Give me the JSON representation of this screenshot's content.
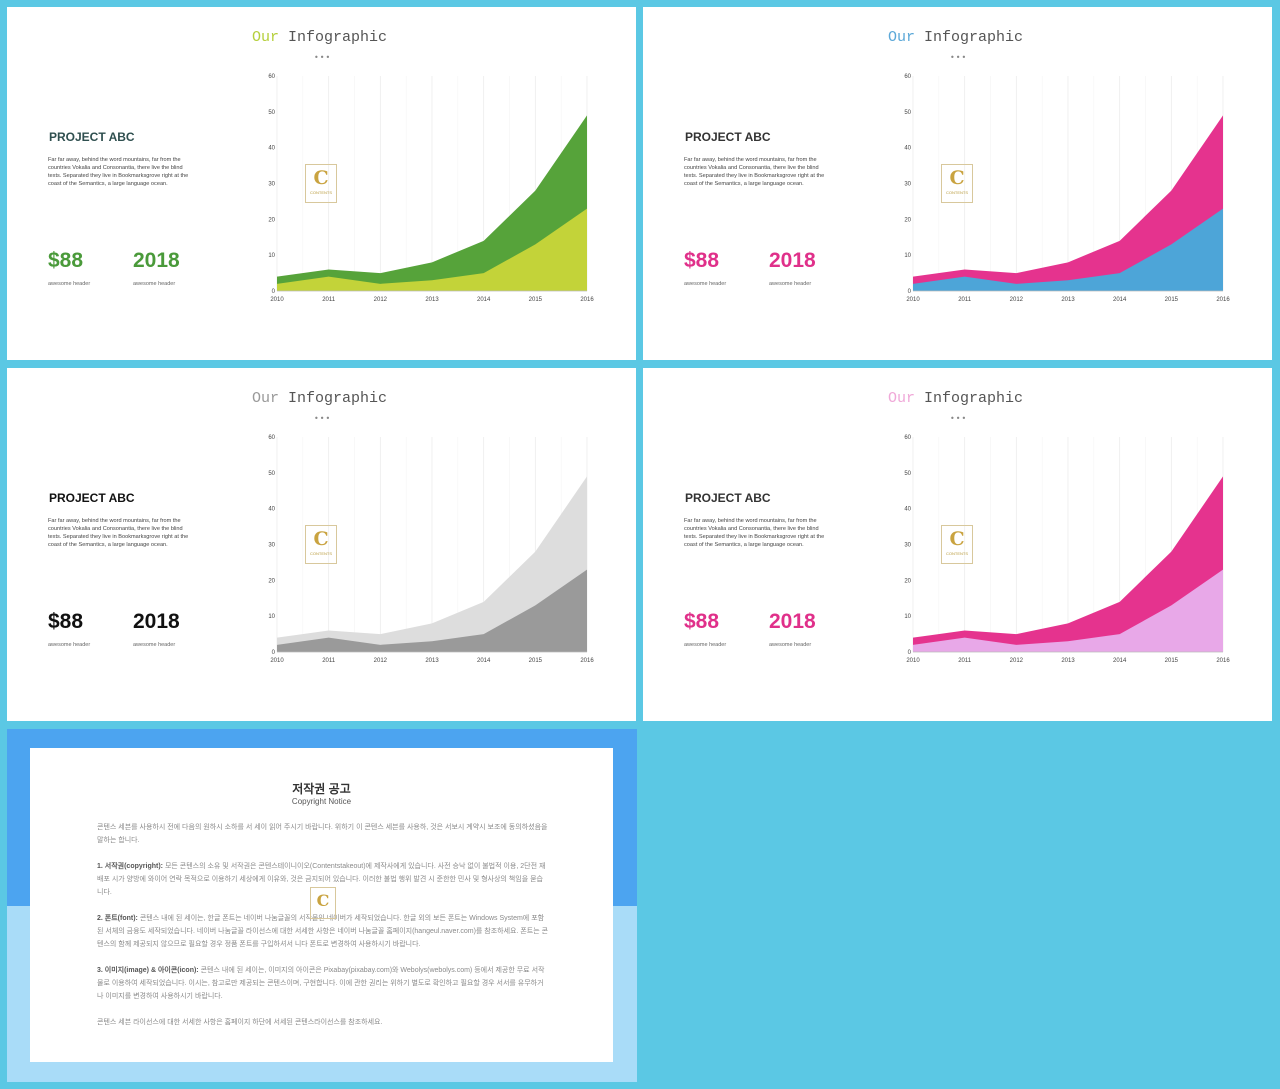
{
  "slides": [
    {
      "title_word1": "Our",
      "title_word2": "Infographic",
      "dots": "•••",
      "project_title": "PROJECT ABC",
      "description": "Far far away, behind the word mountains, far from the countries Vokalia and Consonantia, there live the blind texts. Separated they live in Bookmarksgrove right at the coast of the Semantics, a large language ocean.",
      "stat1_value": "$88",
      "stat1_label": "awesome header",
      "stat2_value": "2018",
      "stat2_label": "awesome header",
      "logo_letter": "C",
      "logo_text": "CONTENTS",
      "colors": {
        "title1": "#b5cf3b",
        "project": "#2f4f4f",
        "stats": "#4a9a3a",
        "upper": "#56a33a",
        "lower": "#c3d339"
      }
    },
    {
      "title_word1": "Our",
      "title_word2": "Infographic",
      "dots": "•••",
      "project_title": "PROJECT ABC",
      "description": "Far far away, behind the word mountains, far from the countries Vokalia and Consonantia, there live the blind texts. Separated they live in Bookmarksgrove right at the coast of the Semantics, a large language ocean.",
      "stat1_value": "$88",
      "stat1_label": "awesome header",
      "stat2_value": "2018",
      "stat2_label": "awesome header",
      "logo_letter": "C",
      "logo_text": "CONTENTS",
      "colors": {
        "title1": "#5ba8d8",
        "project": "#333333",
        "stats": "#e0308a",
        "upper": "#e5338e",
        "lower": "#4da5d8"
      }
    },
    {
      "title_word1": "Our",
      "title_word2": "Infographic",
      "dots": "•••",
      "project_title": "PROJECT ABC",
      "description": "Far far away, behind the word mountains, far from the countries Vokalia and Consonantia, there live the blind texts. Separated they live in Bookmarksgrove right at the coast of the Semantics, a large language ocean.",
      "stat1_value": "$88",
      "stat1_label": "awesome header",
      "stat2_value": "2018",
      "stat2_label": "awesome header",
      "logo_letter": "C",
      "logo_text": "CONTENTS",
      "colors": {
        "title1": "#999999",
        "project": "#111111",
        "stats": "#111111",
        "upper": "#dddddd",
        "lower": "#9a9a9a"
      }
    },
    {
      "title_word1": "Our",
      "title_word2": "Infographic",
      "dots": "•••",
      "project_title": "PROJECT ABC",
      "description": "Far far away, behind the word mountains, far from the countries Vokalia and Consonantia, there live the blind texts. Separated they live in Bookmarksgrove right at the coast of the Semantics, a large language ocean.",
      "stat1_value": "$88",
      "stat1_label": "awesome header",
      "stat2_value": "2018",
      "stat2_label": "awesome header",
      "logo_letter": "C",
      "logo_text": "CONTENTS",
      "colors": {
        "title1": "#f0a8d8",
        "project": "#333333",
        "stats": "#e0308a",
        "upper": "#e5338e",
        "lower": "#e8a8e8"
      }
    }
  ],
  "chart_data": {
    "type": "area",
    "x": [
      "2010",
      "2011",
      "2012",
      "2013",
      "2014",
      "2015",
      "2016"
    ],
    "ylim": [
      0,
      60
    ],
    "yticks": [
      "0",
      "10",
      "20",
      "30",
      "40",
      "50",
      "60"
    ],
    "grid": "vertical",
    "series": [
      {
        "values": [
          2,
          4,
          2,
          3,
          5,
          13,
          23
        ]
      },
      {
        "values": [
          2,
          2,
          3,
          5,
          9,
          15,
          26
        ]
      }
    ]
  },
  "notice": {
    "title": "저작권 공고",
    "subtitle": "Copyright Notice",
    "logo_letter": "C",
    "paragraphs": [
      {
        "head": "",
        "text": "콘텐스 세븐를 사용하시 전에 다음의 원하시 소하를 서 세이 읽어 주시기 바랍니다. 위하기 이 콘텐스 세븐를 사용하, 것은 서보시 계약시 보조에 동의하셨음을 말하는 합니다."
      },
      {
        "head": "1. 서작권(copyright):",
        "text": "모든 콘텐스의 소유 및 서작권은 콘텐스테이니이오(Contentstakeout)에 제작사에게 있습니다. 사전 승낙 없이 불법적 이용, 2단전 재 배포 시가 양방에 와이어 연락 목적으로 이용하기 세상에게 이유와, 것은 금지되어 있습니다. 이러한 불법 행위 발견 시 준한한 민사 및 형사상의 책임을 묻습니다."
      },
      {
        "head": "2. 폰트(font):",
        "text": "콘텐스 내에 된 세이는, 한글 폰트는 네이버 나눔글꼴의 서작물인 네이버가 세작되었습니다. 한글 외의 보든 폰트는 Windows System에 포함된 서체의 금융도 세작되었습니다. 네이버 나눔글꼴 라이선스에 대한 서세한 사항은 네이버 나눔글꼴 홈페이지(hangeul.naver.com)를 참조하세요. 폰트는 콘텐스의 함께 제공되지 않으므로 필요할 경우 정품 폰트를 구입하셔서 니다 폰트로 변경하여 사용하시기 바랍니다."
      },
      {
        "head": "3. 이미지(image) & 아이콘(icon):",
        "text": "콘텐스 내에 된 세이는, 이미지의 아이콘은 Pixabay(pixabay.com)와 Webolys(webolys.com) 등에서 제공한 무료 서작물로 이용하여 세작되었습니다. 이시는, 참고로만 제공되는 콘텐스이며, 구현합니다. 이에 관한 권리는 위하기 별도로 확인하고 필요할 경우 서서를 유무하거나 이미지를 변경하여 사용하시기 바랍니다."
      },
      {
        "head": "",
        "text": "콘텐스 세븐 라이선스에 대한 서세한 사항은 홈페이지 하단에 서세된 콘텐스라이선스를 참조하세요."
      }
    ]
  }
}
